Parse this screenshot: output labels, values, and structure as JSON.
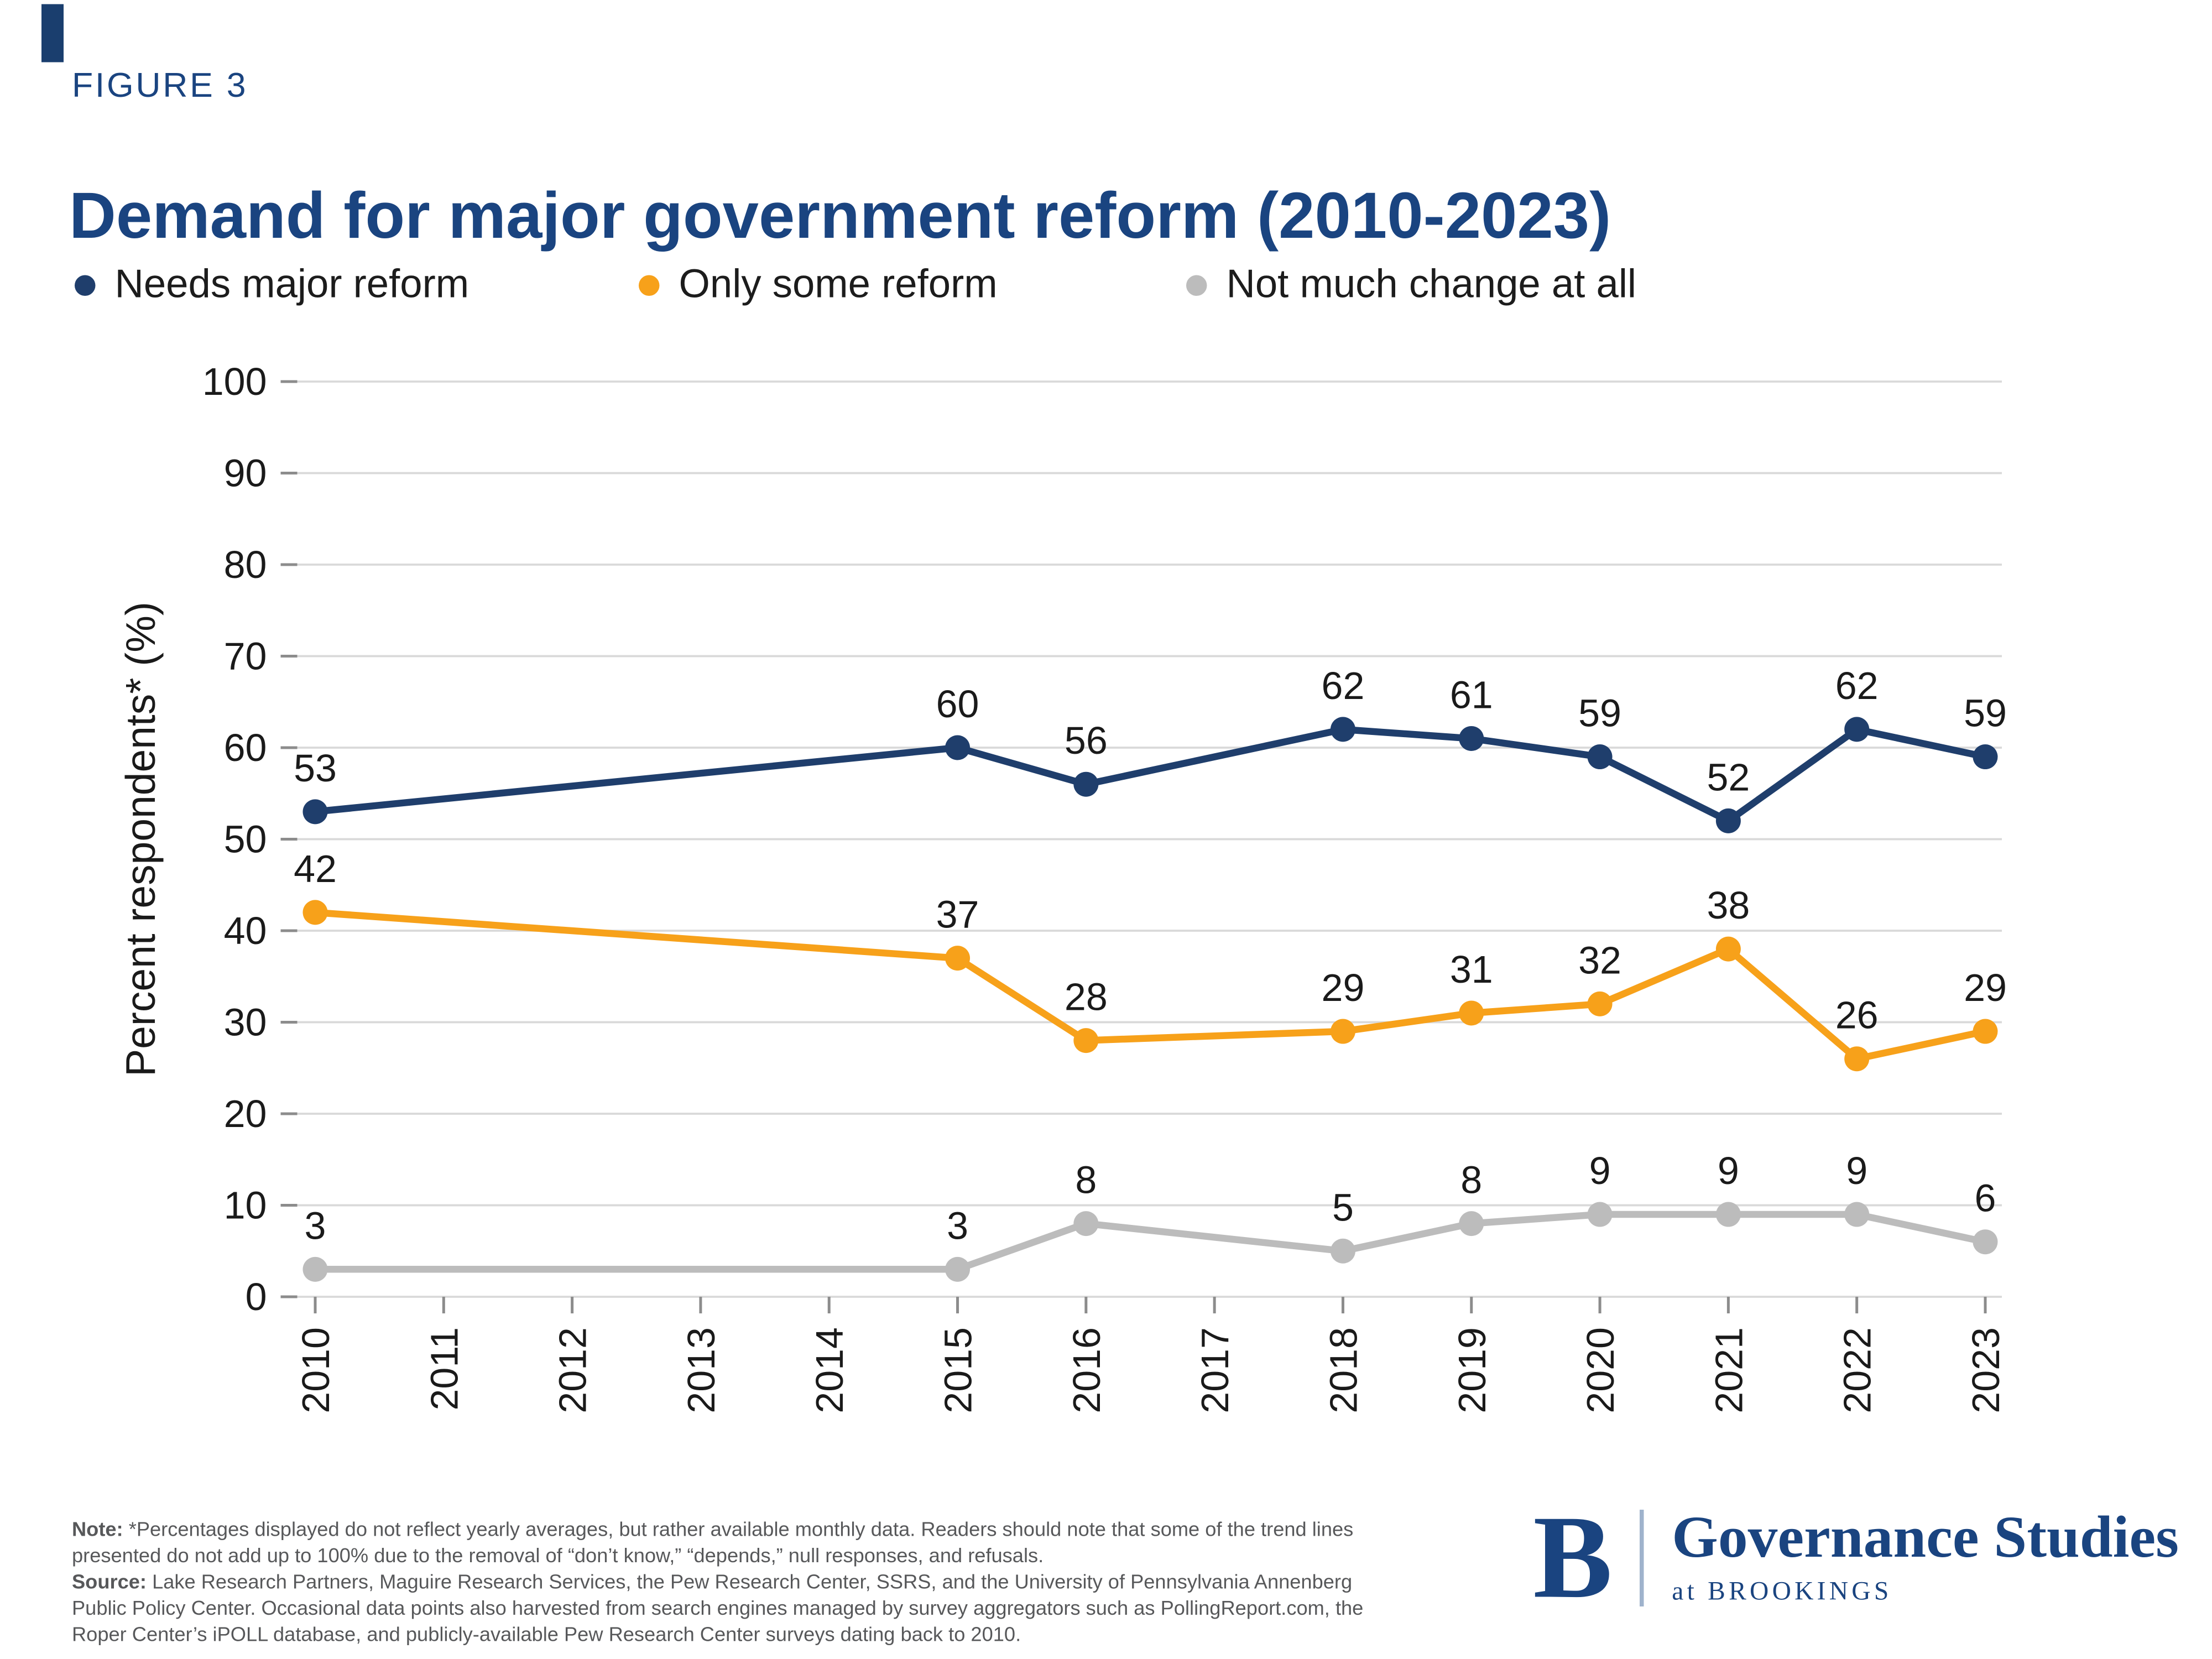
{
  "page": {
    "figure_label": "FIGURE 3",
    "title": "Demand for major government reform (2010-2023)"
  },
  "legend": [
    {
      "label": "Needs major reform",
      "color": "#1f3e6c"
    },
    {
      "label": "Only some reform",
      "color": "#f7a11a"
    },
    {
      "label": "Not much change at all",
      "color": "#bcbcbc"
    }
  ],
  "chart_data": {
    "type": "line",
    "title": "Demand for major government reform (2010-2023)",
    "xlabel": "",
    "ylabel": "Percent respondents* (%)",
    "ylim": [
      0,
      100
    ],
    "ytick_interval": 10,
    "grid": true,
    "data_labels": true,
    "xtick_rotation": 90,
    "legend_position": "top",
    "categories": [
      "2010",
      "2011",
      "2012",
      "2013",
      "2014",
      "2015",
      "2016",
      "2017",
      "2018",
      "2019",
      "2020",
      "2021",
      "2022",
      "2023"
    ],
    "series": [
      {
        "name": "Needs major reform",
        "color": "#1f3e6c",
        "values": [
          53,
          null,
          null,
          null,
          null,
          60,
          56,
          null,
          62,
          61,
          59,
          52,
          62,
          59
        ]
      },
      {
        "name": "Only some reform",
        "color": "#f7a11a",
        "values": [
          42,
          null,
          null,
          null,
          null,
          37,
          28,
          null,
          29,
          31,
          32,
          38,
          26,
          29
        ]
      },
      {
        "name": "Not much change at all",
        "color": "#bcbcbc",
        "values": [
          3,
          null,
          null,
          null,
          null,
          3,
          8,
          null,
          5,
          8,
          9,
          9,
          9,
          6
        ]
      }
    ]
  },
  "note": {
    "note_label": "Note:",
    "note_text": " *Percentages displayed do not reflect yearly averages, but rather available monthly data. Readers should note that some of the trend lines presented do not add up to 100% due to the removal of “don’t know,” “depends,” null responses, and refusals.",
    "source_label": "Source:",
    "source_text": " Lake Research Partners, Maguire Research Services, the Pew Research Center, SSRS, and the University of Pennsylvania Annenberg Public Policy Center. Occasional data points also harvested from search engines managed by survey aggregators such as PollingReport.com, the Roper Center’s iPOLL database, and publicly-available Pew Research Center surveys dating back to 2010."
  },
  "logo": {
    "letter": "B",
    "name": "Governance Studies",
    "sub": "at BROOKINGS"
  },
  "colors": {
    "navy": "#1a4480",
    "grid": "#d9d9d9",
    "tick": "#8c8c8c",
    "label": "#1a1a1a",
    "note_text": "#57585a"
  }
}
